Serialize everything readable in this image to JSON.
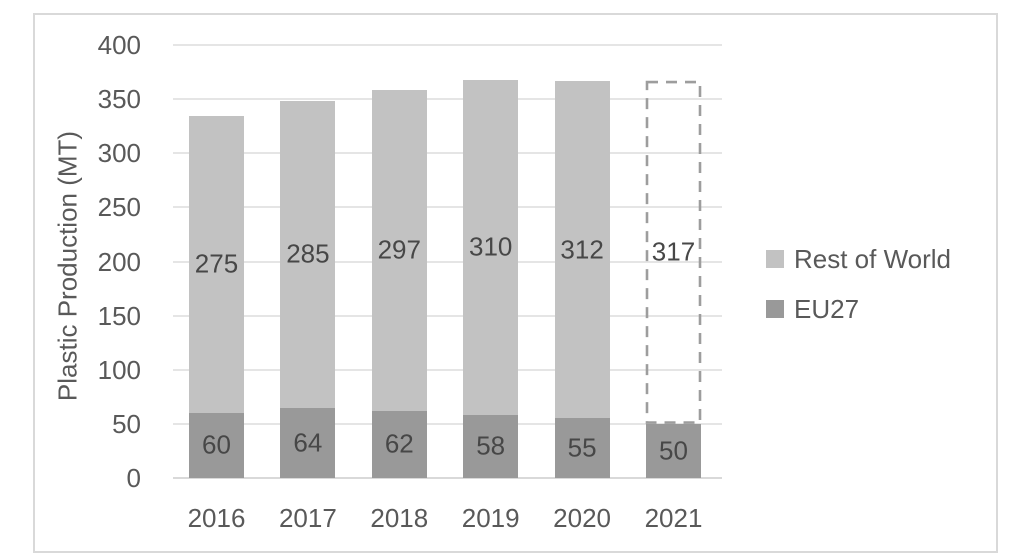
{
  "chart_data": {
    "type": "bar",
    "stacked": true,
    "title": "",
    "ylabel": "Plastic Production (MT)",
    "xlabel": "",
    "categories": [
      "2016",
      "2017",
      "2018",
      "2019",
      "2020",
      "2021"
    ],
    "series": [
      {
        "name": "EU27",
        "color": "#999999",
        "values": [
          60,
          64,
          62,
          58,
          55,
          50
        ]
      },
      {
        "name": "Rest of World",
        "color": "#c2c2c2",
        "values": [
          275,
          285,
          297,
          310,
          312,
          317
        ]
      }
    ],
    "estimated_category": "2021",
    "estimated_note": "2021 Rest of World segment drawn as dashed outline (estimate)",
    "ylim": [
      0,
      400
    ],
    "ytick_step": 50,
    "ytick_labels": [
      "0",
      "50",
      "100",
      "150",
      "200",
      "250",
      "300",
      "350",
      "400"
    ],
    "grid": true,
    "legend_position": "right",
    "legend_order": [
      "Rest of World",
      "EU27"
    ],
    "colors": {
      "grid": "#e5e5e5",
      "axis": "#d9d9d9",
      "frame": "#d9d9d9",
      "tick_text": "#595959",
      "data_label_text": "#474747",
      "estimated_outline": "#9d9d9d",
      "background": "#ffffff"
    }
  }
}
